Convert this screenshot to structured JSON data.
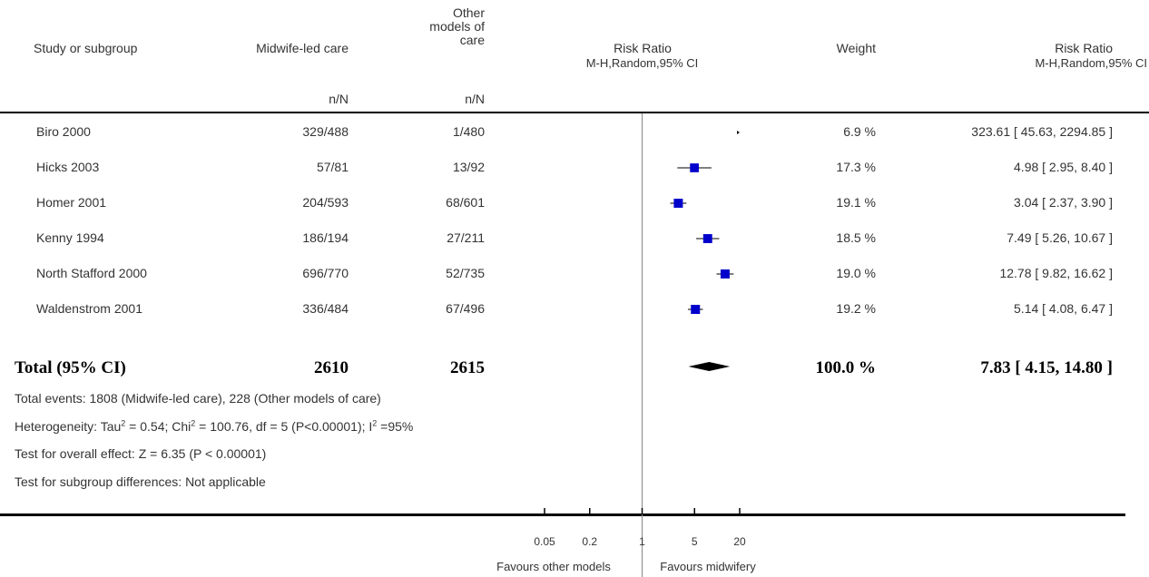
{
  "headers": {
    "study": "Study or subgroup",
    "midwife": "Midwife-led care",
    "other": "Other models of care",
    "risk_ratio": "Risk Ratio",
    "risk_ratio_sub": "M-H,Random,95% CI",
    "weight": "Weight",
    "risk_ratio_right": "Risk Ratio",
    "risk_ratio_right_sub": "M-H,Random,95% CI",
    "nN_midwife": "n/N",
    "nN_other": "n/N"
  },
  "studies": [
    {
      "name": "Biro 2000",
      "midwife": "329/488",
      "other": "1/480",
      "weight": "6.9 %",
      "ci_text": "323.61 [ 45.63, 2294.85 ]"
    },
    {
      "name": "Hicks 2003",
      "midwife": "57/81",
      "other": "13/92",
      "weight": "17.3 %",
      "ci_text": "4.98 [ 2.95, 8.40 ]"
    },
    {
      "name": "Homer 2001",
      "midwife": "204/593",
      "other": "68/601",
      "weight": "19.1 %",
      "ci_text": "3.04 [ 2.37, 3.90 ]"
    },
    {
      "name": "Kenny 1994",
      "midwife": "186/194",
      "other": "27/211",
      "weight": "18.5 %",
      "ci_text": "7.49 [ 5.26, 10.67 ]"
    },
    {
      "name": "North Stafford 2000",
      "midwife": "696/770",
      "other": "52/735",
      "weight": "19.0 %",
      "ci_text": "12.78 [ 9.82, 16.62 ]"
    },
    {
      "name": "Waldenstrom 2001",
      "midwife": "336/484",
      "other": "67/496",
      "weight": "19.2 %",
      "ci_text": "5.14 [ 4.08, 6.47 ]"
    }
  ],
  "total": {
    "label": "Total (95% CI)",
    "midwife": "2610",
    "other": "2615",
    "weight": "100.0 %",
    "ci_text": "7.83 [ 4.15, 14.80 ]"
  },
  "notes": {
    "events": "Total events: 1808 (Midwife-led care), 228 (Other models of care)",
    "heterogeneity_a": "Heterogeneity: Tau",
    "heterogeneity_b": " = 0.54; Chi",
    "heterogeneity_c": " = 100.76, df = 5 (P<0.00001); I",
    "heterogeneity_d": " =95%",
    "sup2": "2",
    "overall": "Test for overall effect: Z = 6.35 (P < 0.00001)",
    "subgroup": "Test for subgroup differences: Not applicable"
  },
  "axis": {
    "favours_left": "Favours other models",
    "favours_right": "Favours midwifery"
  },
  "colors": {
    "marker": "#0000cc",
    "diamond": "#000000",
    "axis": "#000000"
  },
  "chart_data": {
    "type": "forest",
    "xscale": "log",
    "xlim": [
      0.05,
      20
    ],
    "xticks": [
      0.05,
      0.2,
      1,
      5,
      20
    ],
    "xtick_labels": [
      "0.05",
      "0.2",
      "1",
      "5",
      "20"
    ],
    "null_line": 1,
    "series": [
      {
        "name": "Biro 2000",
        "rr": 323.61,
        "lo": 45.63,
        "hi": 2294.85,
        "weight": 6.9
      },
      {
        "name": "Hicks 2003",
        "rr": 4.98,
        "lo": 2.95,
        "hi": 8.4,
        "weight": 17.3
      },
      {
        "name": "Homer 2001",
        "rr": 3.04,
        "lo": 2.37,
        "hi": 3.9,
        "weight": 19.1
      },
      {
        "name": "Kenny 1994",
        "rr": 7.49,
        "lo": 5.26,
        "hi": 10.67,
        "weight": 18.5
      },
      {
        "name": "North Stafford 2000",
        "rr": 12.78,
        "lo": 9.82,
        "hi": 16.62,
        "weight": 19.0
      },
      {
        "name": "Waldenstrom 2001",
        "rr": 5.14,
        "lo": 4.08,
        "hi": 6.47,
        "weight": 19.2
      }
    ],
    "pooled": {
      "rr": 7.83,
      "lo": 4.15,
      "hi": 14.8
    }
  }
}
